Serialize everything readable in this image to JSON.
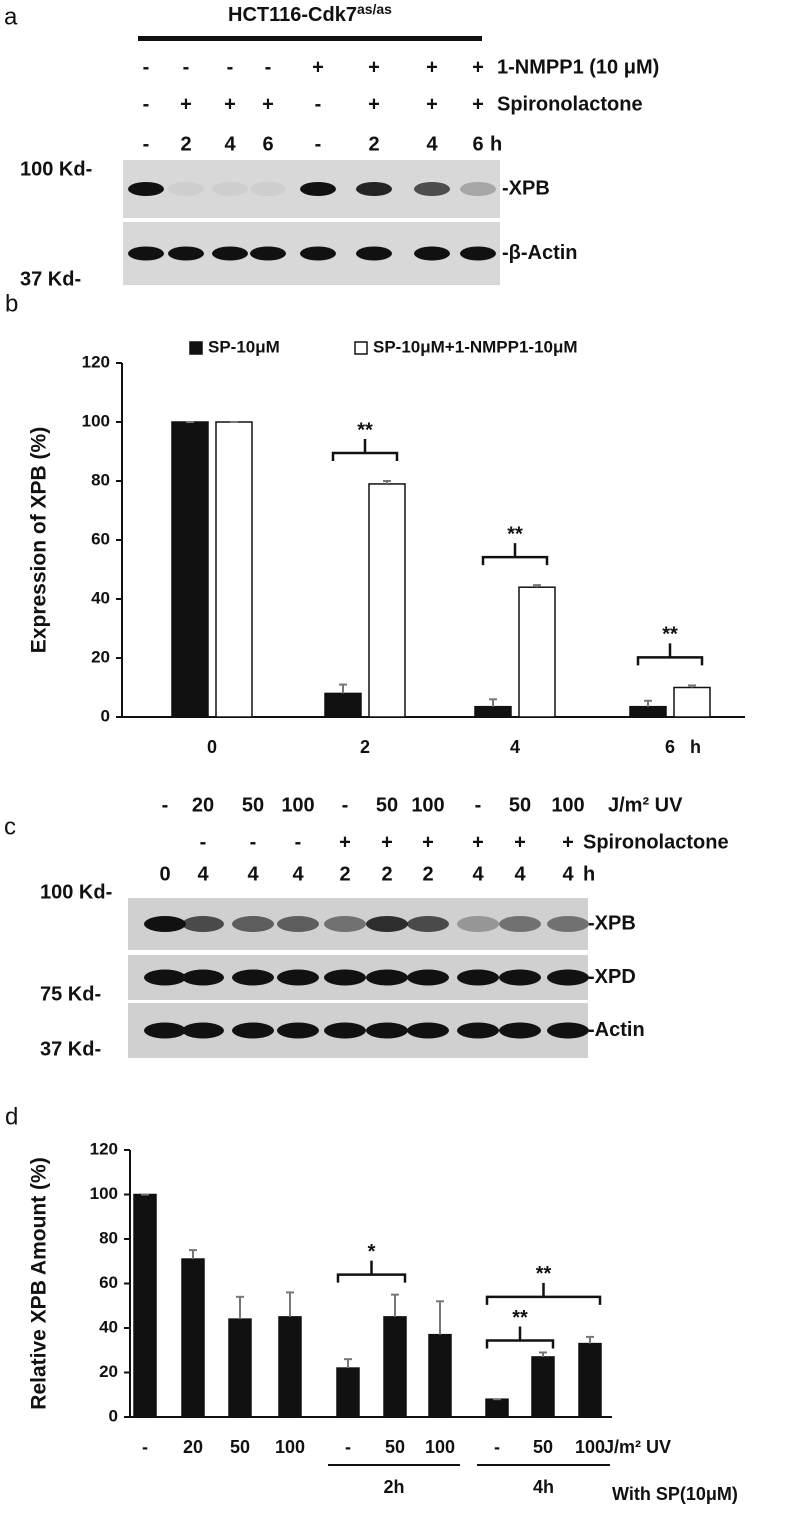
{
  "blot_a": {
    "label": "a",
    "title": "HCT116-Cdk7",
    "title_sup": "as/as",
    "rows": [
      {
        "name": "1-NMPP1 (10 μM)",
        "values": [
          "-",
          "-",
          "-",
          "-",
          "+",
          "+",
          "+",
          "+"
        ]
      },
      {
        "name": "Spironolactone",
        "values": [
          "-",
          "+",
          "+",
          "+",
          "-",
          "+",
          "+",
          "+"
        ]
      },
      {
        "name": "h",
        "values": [
          "-",
          "2",
          "4",
          "6",
          "-",
          "2",
          "4",
          "6"
        ]
      }
    ],
    "markers": [
      "100 Kd-",
      "37 Kd-"
    ],
    "bands": [
      "-XPB",
      "-β-Actin"
    ]
  },
  "blot_c": {
    "label": "c",
    "rows": [
      {
        "name": "J/m² UV",
        "values": [
          "-",
          "20",
          "50",
          "100",
          "-",
          "50",
          "100",
          "-",
          "50",
          "100"
        ]
      },
      {
        "name": "Spironolactone",
        "values": [
          null,
          "-",
          "-",
          "-",
          "+",
          "+",
          "+",
          "+",
          "+",
          "+"
        ]
      },
      {
        "name": "h",
        "values": [
          "0",
          "4",
          "4",
          "4",
          "2",
          "2",
          "2",
          "4",
          "4",
          "4"
        ]
      }
    ],
    "markers": [
      "100 Kd-",
      "75 Kd-",
      "37 Kd-"
    ],
    "bands": [
      "-XPB",
      "-XPD",
      "-Actin"
    ]
  },
  "chart_data": [
    {
      "type": "bar",
      "panel_label": "b",
      "y_label": "Expression of XPB (%)",
      "categories": [
        "0",
        "2",
        "4",
        "6"
      ],
      "x_unit": "h",
      "series": [
        {
          "name": "SP-10μM",
          "color": "#111111",
          "values": [
            100,
            8,
            3.5,
            3.5
          ],
          "errors": [
            0,
            3,
            2.5,
            2
          ]
        },
        {
          "name": "SP-10μM+1-NMPP1-10μM",
          "color": "#ffffff",
          "values": [
            100,
            79,
            44,
            10
          ],
          "errors": [
            0,
            1,
            0.7,
            0.7
          ]
        }
      ],
      "significance": [
        "**",
        "**",
        "**"
      ],
      "ylim": [
        0,
        120
      ],
      "yticks": [
        0,
        20,
        40,
        60,
        80,
        100,
        120
      ],
      "grid": false
    },
    {
      "type": "bar",
      "panel_label": "d",
      "y_label": "Relative XPB Amount (%)",
      "categories": [
        "-",
        "20",
        "50",
        "100",
        "-",
        "50",
        "100",
        "-",
        "50",
        "100"
      ],
      "x_unit": "J/m² UV",
      "series": [
        {
          "color": "#111111",
          "values": [
            100,
            71,
            44,
            45,
            22,
            45,
            37,
            8,
            27,
            33
          ],
          "errors": [
            0,
            4,
            10,
            11,
            4,
            10,
            15,
            0,
            2,
            3
          ]
        }
      ],
      "groups": [
        {
          "label": "2h",
          "from": 4,
          "to": 6
        },
        {
          "label": "4h",
          "from": 7,
          "to": 9
        }
      ],
      "group_note": "With SP(10μM)",
      "significance": [
        "*",
        "**",
        "**"
      ],
      "ylim": [
        0,
        120
      ],
      "yticks": [
        0,
        20,
        40,
        60,
        80,
        100,
        120
      ],
      "grid": false
    }
  ]
}
